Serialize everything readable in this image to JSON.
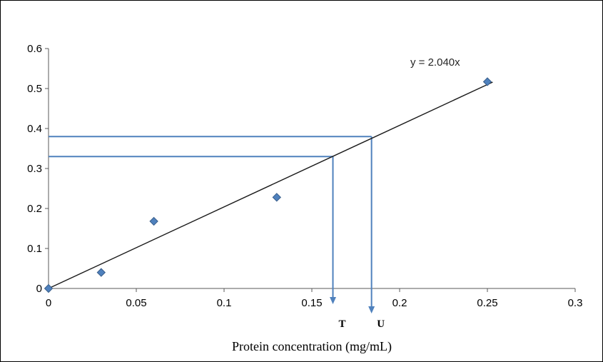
{
  "chart_data": {
    "type": "scatter",
    "title": "",
    "xlabel": "Protein concentration (mg/mL)",
    "ylabel": "",
    "xlim": [
      0,
      0.3
    ],
    "ylim": [
      0,
      0.6
    ],
    "x_tick_labels": [
      "0",
      "0.05",
      "0.1",
      "0.15",
      "0.2",
      "0.25",
      "0.3"
    ],
    "x_tick_values": [
      0,
      0.05,
      0.1,
      0.15,
      0.2,
      0.25,
      0.3
    ],
    "y_tick_labels": [
      "0",
      "0.1",
      "0.2",
      "0.3",
      "0.4",
      "0.5",
      "0.6"
    ],
    "y_tick_values": [
      0,
      0.1,
      0.2,
      0.3,
      0.4,
      0.5,
      0.6
    ],
    "grid": false,
    "legend": false,
    "points": [
      [
        0,
        0
      ],
      [
        0.03,
        0.04
      ],
      [
        0.06,
        0.168
      ],
      [
        0.13,
        0.228
      ],
      [
        0.25,
        0.517
      ]
    ],
    "trendline": {
      "equation": "y = 2.040x",
      "slope": 2.04,
      "x_start": 0,
      "x_end": 0.253
    },
    "annotations": [
      {
        "label": "T",
        "y_value": 0.33,
        "x_value": 0.162
      },
      {
        "label": "U",
        "y_value": 0.38,
        "x_value": 0.184
      }
    ],
    "colors": {
      "marker_fill": "#4f81bd",
      "marker_stroke": "#385d8a",
      "annotation_line": "#4f81bd",
      "trendline": "#1a1a1a",
      "axis": "#595959",
      "text": "#000000",
      "equation_text": "#262626"
    }
  }
}
